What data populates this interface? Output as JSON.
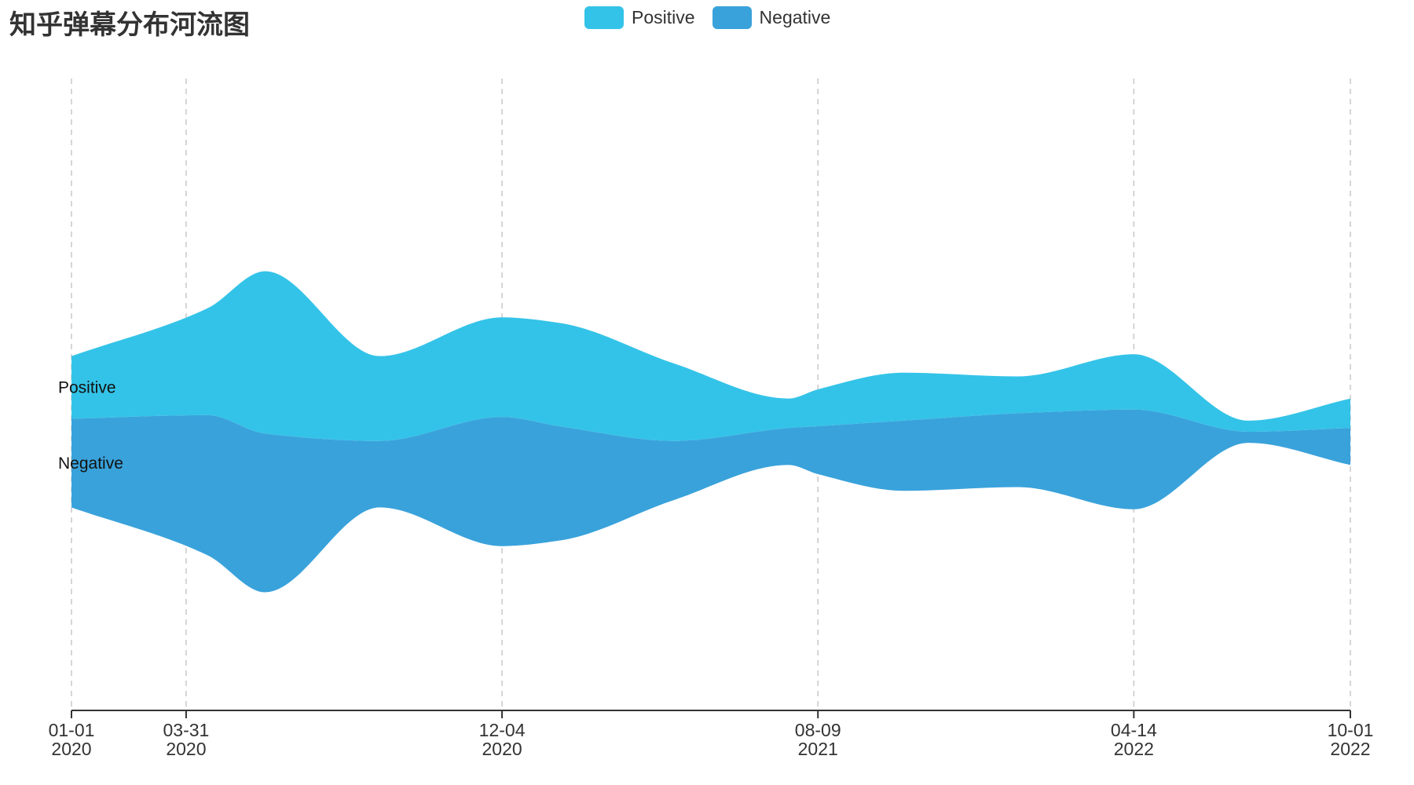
{
  "chart_data": {
    "type": "area",
    "subtype": "streamgraph",
    "title": "知乎弹幕分布河流图",
    "legend_position": "top-center",
    "x_axis": {
      "range": [
        "2020-01-01",
        "2022-10-01"
      ],
      "ticks": [
        {
          "date": "2020-01-01",
          "line1": "01-01",
          "line2": "2020"
        },
        {
          "date": "2020-03-31",
          "line1": "03-31",
          "line2": "2020"
        },
        {
          "date": "2020-12-04",
          "line1": "12-04",
          "line2": "2020"
        },
        {
          "date": "2021-08-09",
          "line1": "08-09",
          "line2": "2021"
        },
        {
          "date": "2022-04-14",
          "line1": "04-14",
          "line2": "2022"
        },
        {
          "date": "2022-10-01",
          "line1": "10-01",
          "line2": "2022"
        }
      ],
      "grid": true
    },
    "x": [
      "2020-01-01",
      "2020-04-17",
      "2020-06-01",
      "2020-08-30",
      "2020-12-04",
      "2021-01-18",
      "2021-04-18",
      "2021-07-17",
      "2021-08-09",
      "2021-10-15",
      "2022-01-13",
      "2022-04-14",
      "2022-07-13",
      "2022-10-01"
    ],
    "series": [
      {
        "name": "Positive",
        "color": "#34c3e8",
        "values": [
          17,
          29,
          44,
          23,
          27,
          28,
          21,
          8,
          10,
          13,
          10,
          15,
          3,
          8
        ]
      },
      {
        "name": "Negative",
        "color": "#39a2db",
        "values": [
          24,
          38,
          43,
          18,
          35,
          31,
          16,
          10,
          13,
          19,
          20,
          27,
          3,
          10
        ]
      }
    ]
  }
}
